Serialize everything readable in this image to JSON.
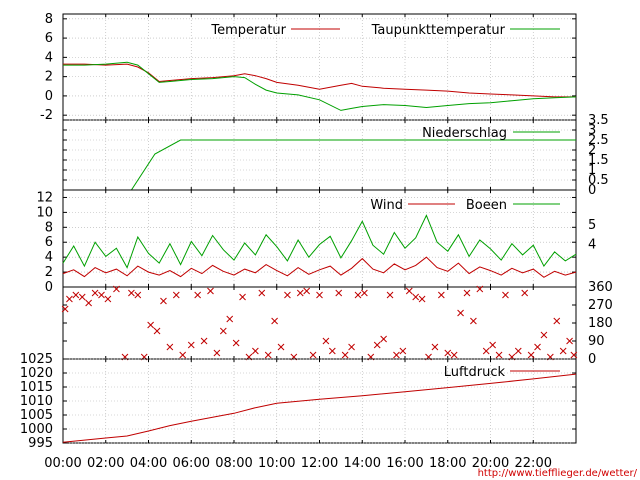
{
  "chart_data": [
    {
      "type": "line",
      "panel": "temperature",
      "ylim": [
        -2.5,
        8.5
      ],
      "yticks": [
        "-2",
        "0",
        "2",
        "4",
        "6",
        "8"
      ],
      "grid": true,
      "legend_position": "top-right",
      "x": [
        0,
        1,
        2,
        3,
        3.5,
        4,
        4.5,
        5,
        6,
        7,
        8,
        8.5,
        9,
        9.5,
        10,
        11,
        12,
        13,
        13.5,
        14,
        15,
        16,
        17,
        18,
        19,
        20,
        21,
        22,
        23,
        24
      ],
      "series": [
        {
          "name": "Temperatur",
          "color": "#c00000",
          "values": [
            3.3,
            3.3,
            3.2,
            3.3,
            3.0,
            2.4,
            1.5,
            1.6,
            1.8,
            1.9,
            2.1,
            2.3,
            2.1,
            1.8,
            1.4,
            1.1,
            0.7,
            1.1,
            1.3,
            1.0,
            0.8,
            0.7,
            0.6,
            0.5,
            0.3,
            0.2,
            0.1,
            0.0,
            -0.1,
            -0.1
          ]
        },
        {
          "name": "Taupunkttemperatur",
          "color": "#00a000",
          "values": [
            3.2,
            3.2,
            3.3,
            3.5,
            3.2,
            2.3,
            1.4,
            1.5,
            1.7,
            1.8,
            2.0,
            1.9,
            1.2,
            0.6,
            0.3,
            0.1,
            -0.4,
            -1.5,
            -1.3,
            -1.1,
            -0.9,
            -1.0,
            -1.2,
            -1.0,
            -0.8,
            -0.7,
            -0.5,
            -0.3,
            -0.2,
            -0.1
          ]
        }
      ]
    },
    {
      "type": "line",
      "panel": "precipitation",
      "ylim": [
        0,
        3.5
      ],
      "yticks": [
        "0",
        "0.5",
        "1",
        "1.5",
        "2",
        "2.5",
        "3",
        "3.5"
      ],
      "grid": true,
      "legend_position": "top-right",
      "x": [
        0,
        3.2,
        4.3,
        5.5,
        24
      ],
      "series": [
        {
          "name": "Niederschlag",
          "color": "#00a000",
          "values": [
            0,
            0,
            1.8,
            2.5,
            2.5
          ]
        }
      ]
    },
    {
      "type": "line",
      "panel": "wind",
      "ylim": [
        0,
        13
      ],
      "yticks": [
        "0",
        "2",
        "4",
        "6",
        "8",
        "10",
        "12"
      ],
      "bft_ticks": [
        {
          "label": "4",
          "value": 5.7
        },
        {
          "label": "5",
          "value": 8.3
        }
      ],
      "grid": true,
      "legend_position": "top-right",
      "x": [
        0,
        0.5,
        1,
        1.5,
        2,
        2.5,
        3,
        3.5,
        4,
        4.5,
        5,
        5.5,
        6,
        6.5,
        7,
        7.5,
        8,
        8.5,
        9,
        9.5,
        10,
        10.5,
        11,
        11.5,
        12,
        12.5,
        13,
        13.5,
        14,
        14.5,
        15,
        15.5,
        16,
        16.5,
        17,
        17.5,
        18,
        18.5,
        19,
        19.5,
        20,
        20.5,
        21,
        21.5,
        22,
        22.5,
        23,
        23.5,
        24
      ],
      "series": [
        {
          "name": "Wind",
          "color": "#c00000",
          "values": [
            1.8,
            2.3,
            1.4,
            2.6,
            1.9,
            2.4,
            1.5,
            2.8,
            2.0,
            1.6,
            2.2,
            1.4,
            2.5,
            1.8,
            2.9,
            2.1,
            1.6,
            2.4,
            1.9,
            3.0,
            2.2,
            1.5,
            2.6,
            1.7,
            2.3,
            2.8,
            1.6,
            2.5,
            3.8,
            2.4,
            1.9,
            3.1,
            2.3,
            2.9,
            4.0,
            2.6,
            2.1,
            3.2,
            1.8,
            2.7,
            2.2,
            1.6,
            2.5,
            1.9,
            2.4,
            1.3,
            2.1,
            1.6,
            2.0
          ]
        },
        {
          "name": "Boeen",
          "color": "#00a000",
          "values": [
            3.2,
            5.5,
            2.8,
            6.0,
            4.1,
            5.2,
            2.6,
            6.7,
            4.5,
            3.2,
            5.8,
            3.0,
            6.1,
            4.2,
            6.9,
            5.0,
            3.6,
            5.9,
            4.3,
            7.0,
            5.4,
            3.5,
            6.3,
            4.0,
            5.7,
            6.8,
            3.9,
            6.2,
            8.8,
            5.6,
            4.4,
            7.3,
            5.2,
            6.6,
            9.6,
            6.0,
            4.8,
            7.0,
            4.1,
            6.3,
            5.1,
            3.6,
            5.8,
            4.3,
            5.6,
            2.8,
            4.7,
            3.5,
            4.4
          ]
        }
      ]
    },
    {
      "type": "scatter",
      "panel": "wind-direction",
      "ylim": [
        0,
        360
      ],
      "yticks": [
        "0",
        "90",
        "180",
        "270",
        "360"
      ],
      "marker": "x",
      "color": "#c00000",
      "x": [
        0.1,
        0.3,
        0.6,
        0.9,
        1.2,
        1.5,
        1.8,
        2.1,
        2.5,
        2.9,
        3.2,
        3.5,
        3.8,
        4.1,
        4.4,
        4.7,
        5.0,
        5.3,
        5.6,
        6.0,
        6.3,
        6.6,
        6.9,
        7.2,
        7.5,
        7.8,
        8.1,
        8.4,
        8.7,
        9.0,
        9.3,
        9.6,
        9.9,
        10.2,
        10.5,
        10.8,
        11.1,
        11.4,
        11.7,
        12.0,
        12.3,
        12.6,
        12.9,
        13.2,
        13.5,
        13.8,
        14.1,
        14.4,
        14.7,
        15.0,
        15.3,
        15.6,
        15.9,
        16.2,
        16.5,
        16.8,
        17.1,
        17.4,
        17.7,
        18.0,
        18.3,
        18.6,
        18.9,
        19.2,
        19.5,
        19.8,
        20.1,
        20.4,
        20.7,
        21.0,
        21.3,
        21.6,
        21.9,
        22.2,
        22.5,
        22.8,
        23.1,
        23.4,
        23.7,
        23.9
      ],
      "values": [
        250,
        300,
        320,
        310,
        280,
        330,
        320,
        300,
        350,
        10,
        330,
        320,
        10,
        170,
        140,
        290,
        60,
        320,
        20,
        70,
        320,
        90,
        340,
        30,
        140,
        200,
        80,
        310,
        10,
        40,
        330,
        20,
        190,
        60,
        320,
        10,
        330,
        340,
        20,
        320,
        90,
        40,
        330,
        20,
        60,
        320,
        330,
        10,
        70,
        100,
        320,
        20,
        40,
        340,
        310,
        300,
        10,
        60,
        320,
        30,
        20,
        230,
        330,
        190,
        350,
        40,
        70,
        20,
        320,
        10,
        40,
        330,
        20,
        60,
        120,
        10,
        190,
        40,
        90,
        20
      ]
    },
    {
      "type": "line",
      "panel": "pressure",
      "ylim": [
        995,
        1025
      ],
      "yticks": [
        "995",
        "1000",
        "1005",
        "1010",
        "1015",
        "1020",
        "1025"
      ],
      "grid": true,
      "legend_position": "top-right",
      "xticks": [
        "00:00",
        "02:00",
        "04:00",
        "06:00",
        "08:00",
        "10:00",
        "12:00",
        "14:00",
        "16:00",
        "18:00",
        "20:00",
        "22:00"
      ],
      "x": [
        0,
        2,
        3,
        4,
        5,
        6,
        7,
        8,
        9,
        10,
        12,
        14,
        16,
        18,
        20,
        22,
        24
      ],
      "series": [
        {
          "name": "Luftdruck",
          "color": "#c00000",
          "values": [
            995.3,
            996.8,
            997.5,
            999.3,
            1001.2,
            1002.8,
            1004.2,
            1005.6,
            1007.6,
            1009.2,
            1010.6,
            1011.9,
            1013.3,
            1014.8,
            1016.3,
            1017.9,
            1019.6
          ]
        }
      ]
    }
  ],
  "footer": {
    "url": "http://www.tiefflieger.de/wetter/"
  },
  "colors": {
    "red": "#c00000",
    "green": "#00a000"
  }
}
